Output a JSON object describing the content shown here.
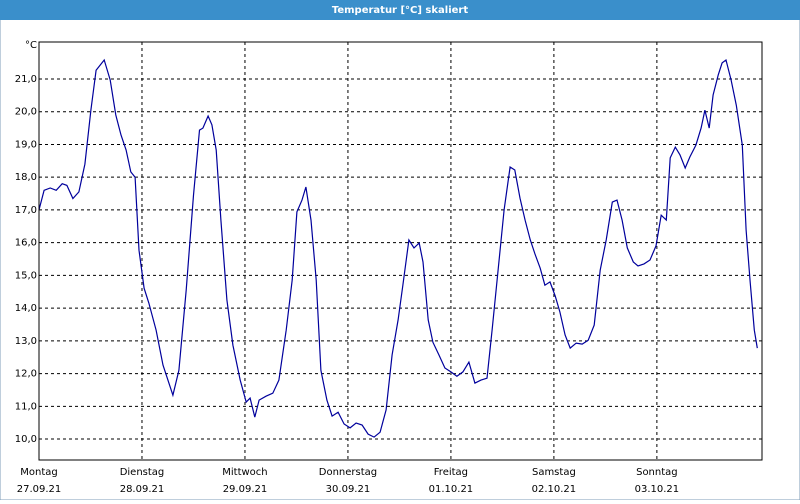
{
  "chart_data": {
    "type": "line",
    "title": "Temperatur [°C] skaliert",
    "y_unit": "°C",
    "x": [
      0,
      1.2,
      2.6,
      4.0,
      5.4,
      6.5,
      7.9,
      9.3,
      10.7,
      12.1,
      13.3,
      15.2,
      16.6,
      17.9,
      19.1,
      20.3,
      21.4,
      22.4,
      23.3,
      24.5,
      25.6,
      27.3,
      28.9,
      31.2,
      32.6,
      34.3,
      36.0,
      37.4,
      38.2,
      39.4,
      40.3,
      41.3,
      42.4,
      43.8,
      45.2,
      46.9,
      48.3,
      49.2,
      50.3,
      51.3,
      52.9,
      54.5,
      55.9,
      57.6,
      59.0,
      60.1,
      61.3,
      62.2,
      63.4,
      64.6,
      65.7,
      67.1,
      68.3,
      69.7,
      71.1,
      72.5,
      73.9,
      75.3,
      76.7,
      78.1,
      79.5,
      80.9,
      82.3,
      83.7,
      84.8,
      86.2,
      87.4,
      88.6,
      89.5,
      90.7,
      91.8,
      93.2,
      94.6,
      96.0,
      97.4,
      98.8,
      100.2,
      101.6,
      103.0,
      104.4,
      105.6,
      107.0,
      108.4,
      109.8,
      110.9,
      112.1,
      113.3,
      114.5,
      115.6,
      116.8,
      117.9,
      119.1,
      120.3,
      121.4,
      122.6,
      123.8,
      125.2,
      126.6,
      128.0,
      129.4,
      130.8,
      132.2,
      133.6,
      134.7,
      135.9,
      137.1,
      138.5,
      139.6,
      141.0,
      142.4,
      143.8,
      145.0,
      146.2,
      147.1,
      148.3,
      149.4,
      150.6,
      151.7,
      153.1,
      154.3,
      155.2,
      156.2,
      157.1,
      158.3,
      159.2,
      160.1,
      161.3,
      162.5,
      163.9,
      164.8,
      165.7,
      166.7,
      167.4
    ],
    "series": [
      {
        "name": "Temperatur",
        "color": "#00009c",
        "values": [
          17.0,
          17.6,
          17.67,
          17.6,
          17.8,
          17.75,
          17.35,
          17.55,
          18.4,
          20.05,
          21.27,
          21.58,
          20.97,
          19.9,
          19.29,
          18.83,
          18.16,
          18.0,
          15.77,
          14.61,
          14.16,
          13.33,
          12.26,
          11.34,
          12.1,
          14.55,
          17.45,
          19.44,
          19.5,
          19.87,
          19.6,
          18.83,
          16.69,
          14.25,
          12.87,
          11.8,
          11.13,
          11.25,
          10.67,
          11.19,
          11.31,
          11.4,
          11.8,
          13.33,
          14.86,
          16.94,
          17.3,
          17.7,
          16.69,
          14.86,
          12.1,
          11.19,
          10.7,
          10.82,
          10.46,
          10.34,
          10.49,
          10.43,
          10.15,
          10.06,
          10.21,
          10.89,
          12.57,
          13.64,
          14.71,
          16.08,
          15.84,
          15.99,
          15.41,
          13.64,
          12.96,
          12.57,
          12.17,
          12.05,
          11.92,
          12.05,
          12.35,
          11.71,
          11.8,
          11.86,
          13.33,
          15.16,
          17.0,
          18.31,
          18.22,
          17.36,
          16.69,
          16.08,
          15.65,
          15.22,
          14.7,
          14.8,
          14.37,
          13.88,
          13.18,
          12.78,
          12.93,
          12.9,
          13.02,
          13.48,
          15.16,
          16.08,
          17.24,
          17.3,
          16.69,
          15.84,
          15.41,
          15.29,
          15.35,
          15.47,
          15.9,
          16.84,
          16.69,
          18.59,
          18.92,
          18.68,
          18.28,
          18.62,
          18.98,
          19.5,
          20.05,
          19.5,
          20.51,
          21.12,
          21.49,
          21.58,
          20.97,
          20.2,
          18.98,
          16.39,
          14.86,
          13.33,
          12.78
        ]
      }
    ],
    "xlim": [
      0,
      168.5
    ],
    "xticks": [
      {
        "value": 0,
        "label": "Montag",
        "date": "27.09.21"
      },
      {
        "value": 24,
        "label": "Dienstag",
        "date": "28.09.21"
      },
      {
        "value": 48,
        "label": "Mittwoch",
        "date": "29.09.21"
      },
      {
        "value": 72,
        "label": "Donnerstag",
        "date": "30.09.21"
      },
      {
        "value": 96,
        "label": "Freitag",
        "date": "01.10.21"
      },
      {
        "value": 120,
        "label": "Samstag",
        "date": "02.10.21"
      },
      {
        "value": 144,
        "label": "Sonntag",
        "date": "03.10.21"
      }
    ],
    "ylim": [
      9.36,
      22.13
    ],
    "yticks": [
      {
        "value": 10,
        "label": "10,0"
      },
      {
        "value": 11,
        "label": "11,0"
      },
      {
        "value": 12,
        "label": "12,0"
      },
      {
        "value": 13,
        "label": "13,0"
      },
      {
        "value": 14,
        "label": "14,0"
      },
      {
        "value": 15,
        "label": "15,0"
      },
      {
        "value": 16,
        "label": "16,0"
      },
      {
        "value": 17,
        "label": "17,0"
      },
      {
        "value": 18,
        "label": "18,0"
      },
      {
        "value": 19,
        "label": "19,0"
      },
      {
        "value": 20,
        "label": "20,0"
      },
      {
        "value": 21,
        "label": "21,0"
      }
    ],
    "grid": true
  }
}
